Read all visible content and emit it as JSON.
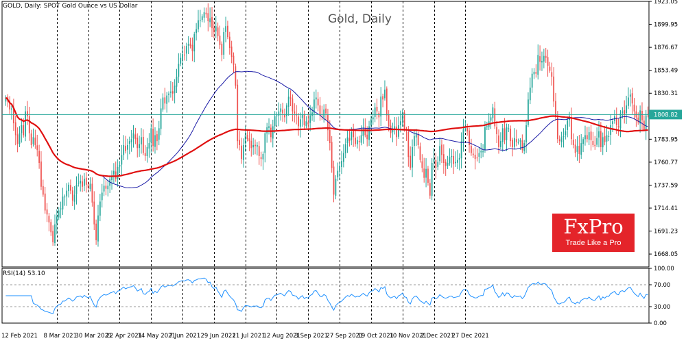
{
  "header": {
    "symbol_info": "GOLD, Daily:  SPOT Gold Ounce vs US Dollar",
    "title": "Gold, Daily",
    "rsi_label": "RSI(14) 53.10"
  },
  "logo": {
    "name": "FxPro",
    "tagline": "Trade Like a Pro"
  },
  "colors": {
    "bull": "#26a69a",
    "bear": "#ef5350",
    "ma_fast": "#1a1aa6",
    "ma_slow": "#e01010",
    "last_price_line": "#26a69a",
    "rsi_line": "#1e90ff",
    "grid": "#000000"
  },
  "chart_data": [
    {
      "type": "candlestick",
      "title": "Gold, Daily",
      "xlabel": "",
      "ylabel": "",
      "ylim": [
        1655,
        1923.05
      ],
      "y_ticks": [
        1923.05,
        1899.95,
        1876.67,
        1853.49,
        1830.31,
        1806.82,
        1783.95,
        1760.77,
        1737.59,
        1714.41,
        1691.23,
        1668.05
      ],
      "last_price": 1808.82,
      "x_labels": [
        "12 Feb 2021",
        "8 Mar 2021",
        "30 Mar 2021",
        "22 Apr 2021",
        "14 May 2021",
        "7 Jun 2021",
        "29 Jun 2021",
        "21 Jul 2021",
        "12 Aug 2021",
        "3 Sep 2021",
        "27 Sep 2021",
        "19 Oct 2021",
        "10 Nov 2021",
        "2 Dec 2021",
        "27 Dec 2021"
      ],
      "grid": "vertical dashed",
      "series": [
        {
          "name": "",
          "values": [
            1826,
            1822,
            1814,
            1815,
            1800,
            1788,
            1779,
            1790,
            1798,
            1788,
            1812,
            1807,
            1790,
            1778,
            1786,
            1778,
            1773,
            1760,
            1736,
            1728,
            1712,
            1708,
            1700,
            1690,
            1680,
            1698,
            1706,
            1712,
            1714,
            1726,
            1726,
            1732,
            1738,
            1732,
            1722,
            1728,
            1738,
            1740,
            1742,
            1736,
            1744,
            1738,
            1735,
            1739,
            1720,
            1698,
            1682,
            1707,
            1721,
            1730,
            1737,
            1734,
            1737,
            1744,
            1747,
            1752,
            1744,
            1756,
            1758,
            1768,
            1778,
            1772,
            1778,
            1782,
            1784,
            1790,
            1784,
            1775,
            1779,
            1786,
            1770,
            1767,
            1776,
            1780,
            1795,
            1777,
            1788,
            1782,
            1795,
            1815,
            1826,
            1820,
            1828,
            1830,
            1832,
            1830,
            1838,
            1847,
            1860,
            1866,
            1870,
            1869,
            1878,
            1880,
            1878,
            1873,
            1890,
            1895,
            1904,
            1904,
            1908,
            1912,
            1910,
            1903,
            1906,
            1896,
            1892,
            1898,
            1888,
            1879,
            1869,
            1892,
            1898,
            1887,
            1876,
            1867,
            1859,
            1838,
            1782,
            1778,
            1764,
            1778,
            1788,
            1784,
            1782,
            1775,
            1778,
            1777,
            1778,
            1767,
            1764,
            1769,
            1790,
            1796,
            1797,
            1786,
            1797,
            1807,
            1808,
            1812,
            1815,
            1810,
            1806,
            1818,
            1827,
            1825,
            1812,
            1810,
            1808,
            1797,
            1804,
            1809,
            1798,
            1802,
            1799,
            1808,
            1811,
            1824,
            1826,
            1818,
            1808,
            1807,
            1814,
            1810,
            1793,
            1780,
            1755,
            1728,
            1744,
            1752,
            1757,
            1762,
            1770,
            1779,
            1786,
            1782,
            1791,
            1786,
            1779,
            1783,
            1781,
            1788,
            1794,
            1788,
            1784,
            1797,
            1804,
            1806,
            1816,
            1812,
            1806,
            1827,
            1824,
            1834,
            1808,
            1797,
            1790,
            1794,
            1797,
            1786,
            1798,
            1802,
            1810,
            1794,
            1792,
            1766,
            1755,
            1776,
            1787,
            1790,
            1778,
            1763,
            1755,
            1745,
            1754,
            1740,
            1727,
            1760,
            1764,
            1755,
            1761,
            1777,
            1768,
            1760,
            1757,
            1760,
            1766,
            1767,
            1759,
            1761,
            1763,
            1765,
            1782,
            1794,
            1795,
            1792,
            1778,
            1770,
            1768,
            1764,
            1765,
            1770,
            1772,
            1772,
            1796,
            1797,
            1802,
            1806,
            1816,
            1797,
            1789,
            1776,
            1782,
            1795,
            1783,
            1796,
            1795,
            1782,
            1776,
            1785,
            1781,
            1781,
            1783,
            1773,
            1780,
            1798,
            1824,
            1836,
            1850,
            1852,
            1850,
            1869,
            1862,
            1863,
            1868,
            1866,
            1858,
            1853,
            1847,
            1822,
            1806,
            1784,
            1782,
            1786,
            1787,
            1792,
            1803,
            1807,
            1784,
            1778,
            1770,
            1777,
            1769,
            1780,
            1784,
            1788,
            1784,
            1791,
            1783,
            1778,
            1777,
            1785,
            1792,
            1776,
            1786,
            1781,
            1788,
            1787,
            1798,
            1802,
            1807,
            1798,
            1796,
            1810,
            1812,
            1809,
            1818,
            1826,
            1829,
            1820,
            1812,
            1806,
            1801,
            1813,
            1803,
            1794,
            1808,
            1809
          ]
        }
      ]
    },
    {
      "type": "line",
      "title": "RSI(14) 53.10",
      "ylim": [
        0,
        100
      ],
      "y_ticks": [
        100,
        70,
        30,
        0
      ],
      "levels": [
        70,
        30
      ],
      "series": [
        {
          "name": "",
          "values": []
        }
      ]
    }
  ]
}
